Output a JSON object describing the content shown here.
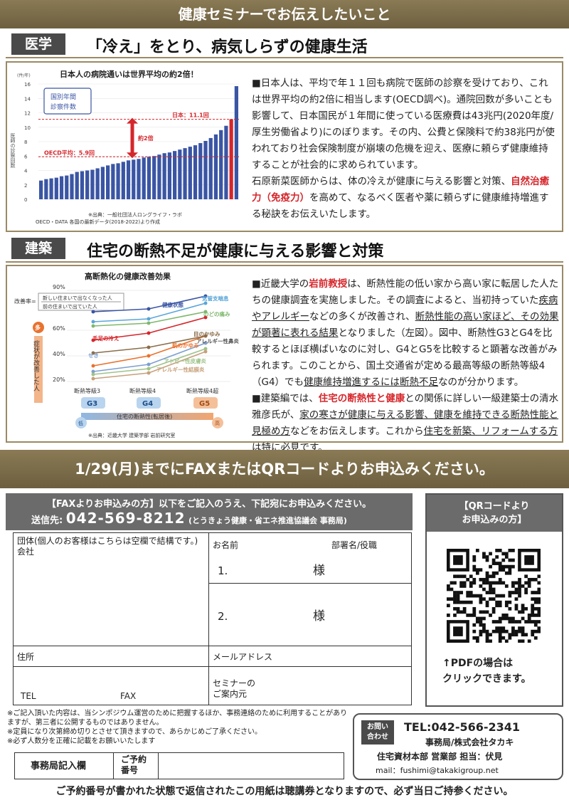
{
  "banner": "健康セミナーでお伝えしたいこと",
  "sec1": {
    "tag": "医学",
    "title": "「冷え」をとり、病気しらずの健康生活",
    "chart": {
      "title": "日本人の病院通いは世界平均の約2倍！",
      "legend": "国別年間\n診察件数",
      "unit": "(件/年)",
      "ylabel": "医師の診察回数",
      "japan_label": "日本：11.1回",
      "oecd_label": "OECD平均：5.9回",
      "ratio_label": "約2倍",
      "source1": "※出典：一般社団法人ロングライフ・ラボ",
      "source2": "OECD・DATA 各国の最新データ(2018-2022)より作成"
    },
    "text": [
      "■日本人は、平均で年１１回も病院で医師の診察を受けており、これは世界平均の約2倍に相当します(OECD調べ)。通院回数が多いことも影響して、日本国民が１年間に使っている医療費は43兆円(2020年度/厚生労働省より)にのぼります。その内、公費と保険料で約38兆円が使われており社会保険制度が崩壊の危機を迎え、医療に頼らず健康維持することが社会的に求められています。",
      "石原新菜医師からは、体の冷えが健康に与える影響と対策、",
      "自然治癒力（免疫力）",
      "を高めて、なるべく医者や薬に頼らずに健康維持増進する秘訣をお伝えいたします。"
    ]
  },
  "chart_data": {
    "type": "bar",
    "title": "日本人の病院通いは世界平均の約2倍！",
    "ylabel": "医師の診察回数",
    "ylim": [
      0,
      16
    ],
    "yticks": [
      0,
      2,
      4,
      6,
      8,
      10,
      12,
      14,
      16
    ],
    "values": [
      2.6,
      2.8,
      2.9,
      3.0,
      3.2,
      3.3,
      3.5,
      3.8,
      3.9,
      4.0,
      4.1,
      4.3,
      4.5,
      4.7,
      4.9,
      5.0,
      5.2,
      5.4,
      5.5,
      5.6,
      5.8,
      5.9,
      6.0,
      6.2,
      6.4,
      6.5,
      6.7,
      6.9,
      7.1,
      7.3,
      7.5,
      7.8,
      8.1,
      8.5,
      9.0,
      9.6,
      10.2,
      11.1,
      15.7
    ],
    "highlight_index": 37,
    "reference_lines": [
      {
        "label": "OECD平均：5.9回",
        "value": 5.9
      },
      {
        "label": "日本：11.1回",
        "value": 11.1
      }
    ]
  },
  "sec2": {
    "tag": "建築",
    "title": "住宅の断熱不足が健康に与える影響と対策",
    "chart": {
      "title": "高断熱化の健康改善効果",
      "ratio_label": "改善率=",
      "ratio_num": "新しい住まいで出なくなった人",
      "ratio_den": "前の住まいで出ていた人",
      "yaxis_top": "多",
      "yaxis_text": "症状が改善した人",
      "xlabels": [
        "断熱等級3",
        "断熱等級4",
        "断熱等級4超"
      ],
      "grades": [
        "G3",
        "G4",
        "G5"
      ],
      "xaxis_low": "低",
      "xaxis_high": "高",
      "xaxis_title": "住宅の断熱性(転居後)",
      "source": "※出典：近畿大学 建築学部 岩前研究室",
      "yticks": [
        "90%",
        "60%",
        "40%",
        "20%"
      ],
      "series": [
        "健康状態",
        "気管支喘息",
        "のどの痛み",
        "手足の冷え",
        "肌のかゆみ",
        "目のかゆみ",
        "せき",
        "アトピー性皮膚炎",
        "アレルギー性結膜炎",
        "アレルギー性鼻炎"
      ]
    },
    "text": [
      "■近畿大学の",
      "岩前教授",
      "は、断熱性能の低い家から高い家に転居した人たちの健康調査を実施しました。その調査によると、当初持っていた",
      "疾病やアレルギー",
      "などの多くが改善され、",
      "断熱性能の高い家ほど、その効果が顕著に表れる結果",
      "となりました（左図）。図中、断熱性G3とG4を比較するとほぼ横ばいなのに対し、G4とG5を比較すると顕著な改善がみられます。このことから、国土交通省が定める最高等級の断熱等級4（G4）でも",
      "健康維持増進するには断熱不足",
      "なのが分かります。",
      "■建築編では、",
      "住宅の断熱性と健康",
      "との関係に詳しい一級建築士の清水雅彦氏が、",
      "家の寒さが健康に与える影響、健康を維持できる断熱性能と見極め方",
      "などをお伝えします。これから",
      "住宅を新築、リフォームする方は特に必見です。"
    ]
  },
  "deadline": "1/29(月)までにFAXまたはQRコードよりお申込みください。",
  "form": {
    "head1": "【FAXよりお申込みの方】以下をご記入のうえ、下記宛にお申込みください。",
    "fax_prefix": "送信先:",
    "fax_number": "042-569-8212",
    "fax_org": "(とうきょう健康・省エネ推進協議会 事務局)",
    "org_label": "団体(個人のお客様はこちらは空欄で結構です。)\n会社",
    "name_label": "お名前",
    "dept_label": "部署名/役職",
    "row1": "1.",
    "row2": "2.",
    "sama": "様",
    "address_label": "住所",
    "email_label": "メールアドレス",
    "tel_label": "TEL",
    "fax_label": "FAX",
    "guide_label": "セミナーの\nご案内元"
  },
  "qr": {
    "head": "【QRコードより\nお申込みの方】",
    "note": "↑PDFの場合は\nクリックできます。"
  },
  "notes": [
    "※ご記入頂いた内容は、当シンポジウム運営のために把握するほか、事務連絡のために利用することがありますが、第三者に公開するものではありません。",
    "※定員になり次第締め切りとさせて頂きますので、あらかじめご了承ください。",
    "※必ず人数分を正確に記載をお願いいたします"
  ],
  "office": {
    "label": "事務局記入欄",
    "resv_label": "ご予約\n番号"
  },
  "contact": {
    "badge": "お問い\n合わせ",
    "tel": "TEL:042-566-2341",
    "line1": "事務局/株式会社タカキ",
    "line2": "住宅資材本部 営業部 担当：伏見",
    "mail": "mail：fushimi@takakigroup.net"
  },
  "bottom_note": "ご予約番号が書かれた状態で返信されたこの用紙は聴講券となりますので、必ず当日ご持参ください。",
  "colors": {
    "gold": "#8a7a55",
    "red": "#d5262b",
    "bar": "#3a55a4",
    "dark": "#4a4a4a"
  }
}
